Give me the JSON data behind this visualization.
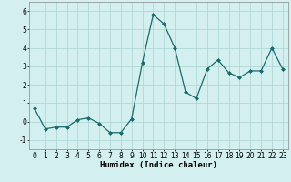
{
  "x": [
    0,
    1,
    2,
    3,
    4,
    5,
    6,
    7,
    8,
    9,
    10,
    11,
    12,
    13,
    14,
    15,
    16,
    17,
    18,
    19,
    20,
    21,
    22,
    23
  ],
  "y": [
    0.7,
    -0.4,
    -0.3,
    -0.3,
    0.1,
    0.2,
    -0.1,
    -0.6,
    -0.6,
    0.15,
    3.2,
    5.8,
    5.3,
    4.0,
    1.6,
    1.25,
    2.85,
    3.35,
    2.65,
    2.4,
    2.75,
    2.75,
    4.0,
    2.85
  ],
  "line_color": "#1a6b6b",
  "marker": "D",
  "marker_size": 2.0,
  "bg_color": "#d4efef",
  "grid_color": "#b0d8d8",
  "xlabel": "Humidex (Indice chaleur)",
  "xlim": [
    -0.5,
    23.5
  ],
  "ylim": [
    -1.5,
    6.5
  ],
  "yticks": [
    -1,
    0,
    1,
    2,
    3,
    4,
    5,
    6
  ],
  "xticks": [
    0,
    1,
    2,
    3,
    4,
    5,
    6,
    7,
    8,
    9,
    10,
    11,
    12,
    13,
    14,
    15,
    16,
    17,
    18,
    19,
    20,
    21,
    22,
    23
  ],
  "xlabel_fontsize": 6.5,
  "tick_fontsize": 5.5,
  "linewidth": 0.9
}
